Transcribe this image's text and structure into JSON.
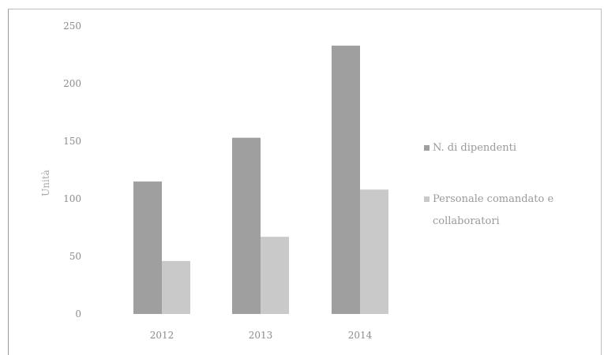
{
  "chart_data": {
    "type": "bar",
    "title": "",
    "xlabel": "",
    "ylabel": "Unità",
    "categories": [
      "2012",
      "2013",
      "2014"
    ],
    "ylim": [
      0,
      250
    ],
    "yticks": [
      0,
      50,
      100,
      150,
      200,
      250
    ],
    "grid": false,
    "legend_position": "right",
    "series": [
      {
        "name": "N. di dipendenti",
        "values": [
          115,
          153,
          233
        ],
        "color": "#9f9f9f"
      },
      {
        "name": "Personale comandato e collaboratori",
        "values": [
          46,
          67,
          108
        ],
        "color": "#c9c9c9"
      }
    ]
  }
}
